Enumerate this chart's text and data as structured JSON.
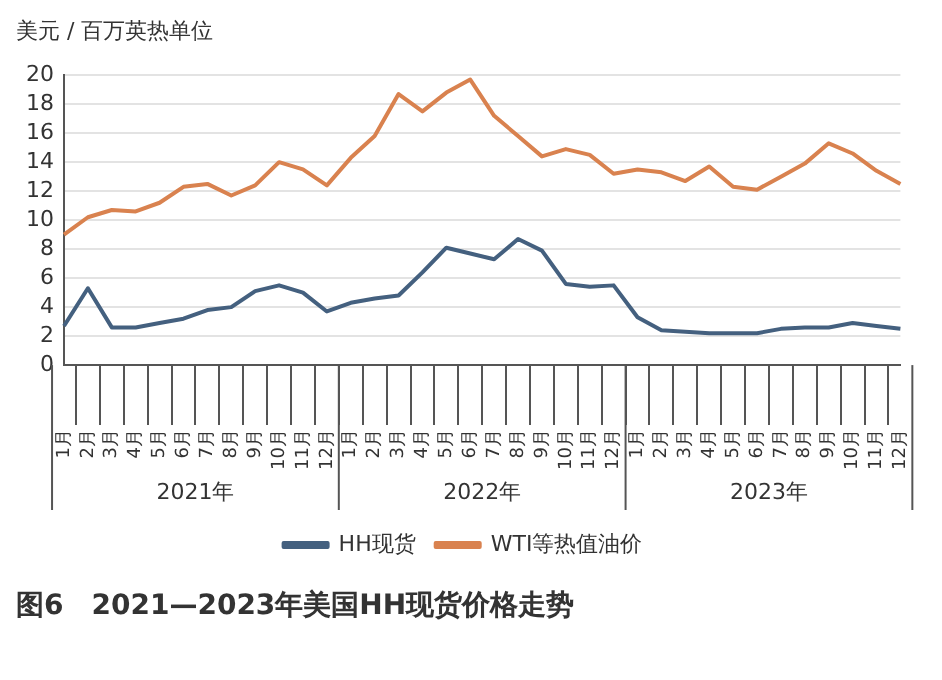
{
  "chart_data": {
    "type": "line",
    "title": "图6　2021—2023年美国HH现货价格走势",
    "ylabel": "美元 / 百万英热单位",
    "categories": [
      "1月",
      "2月",
      "3月",
      "4月",
      "5月",
      "6月",
      "7月",
      "8月",
      "9月",
      "10月",
      "11月",
      "12月",
      "1月",
      "2月",
      "3月",
      "4月",
      "5月",
      "6月",
      "7月",
      "8月",
      "9月",
      "10月",
      "11月",
      "12月",
      "1月",
      "2月",
      "3月",
      "4月",
      "5月",
      "6月",
      "7月",
      "8月",
      "9月",
      "10月",
      "11月",
      "12月"
    ],
    "annotations": [
      "2021年",
      "2022年",
      "2023年"
    ],
    "series": [
      {
        "name": "HH现货",
        "color": "#44607f",
        "values": [
          2.7,
          5.3,
          2.6,
          2.6,
          2.9,
          3.2,
          3.8,
          4.0,
          5.1,
          5.5,
          5.0,
          3.7,
          4.3,
          4.6,
          4.8,
          6.4,
          8.1,
          7.7,
          7.3,
          8.7,
          7.9,
          5.6,
          5.4,
          5.5,
          3.3,
          2.4,
          2.3,
          2.2,
          2.2,
          2.2,
          2.5,
          2.6,
          2.6,
          2.9,
          2.7,
          2.5
        ]
      },
      {
        "name": "WTI等热值油价",
        "color": "#d9824f",
        "values": [
          9.0,
          10.2,
          10.7,
          10.6,
          11.2,
          12.3,
          12.5,
          11.7,
          12.4,
          14.0,
          13.5,
          12.4,
          14.3,
          15.8,
          18.7,
          17.5,
          18.8,
          19.7,
          17.2,
          15.8,
          14.4,
          14.9,
          14.5,
          13.2,
          13.5,
          13.3,
          12.7,
          13.7,
          12.3,
          12.1,
          13.0,
          13.9,
          15.3,
          14.6,
          13.4,
          12.5
        ]
      }
    ],
    "ylim": [
      0,
      20
    ],
    "yticks": [
      0,
      2,
      4,
      6,
      8,
      10,
      12,
      14,
      16,
      18,
      20
    ],
    "grid": "y",
    "legend": "bottom",
    "marker": "none",
    "line_style": "solid"
  }
}
